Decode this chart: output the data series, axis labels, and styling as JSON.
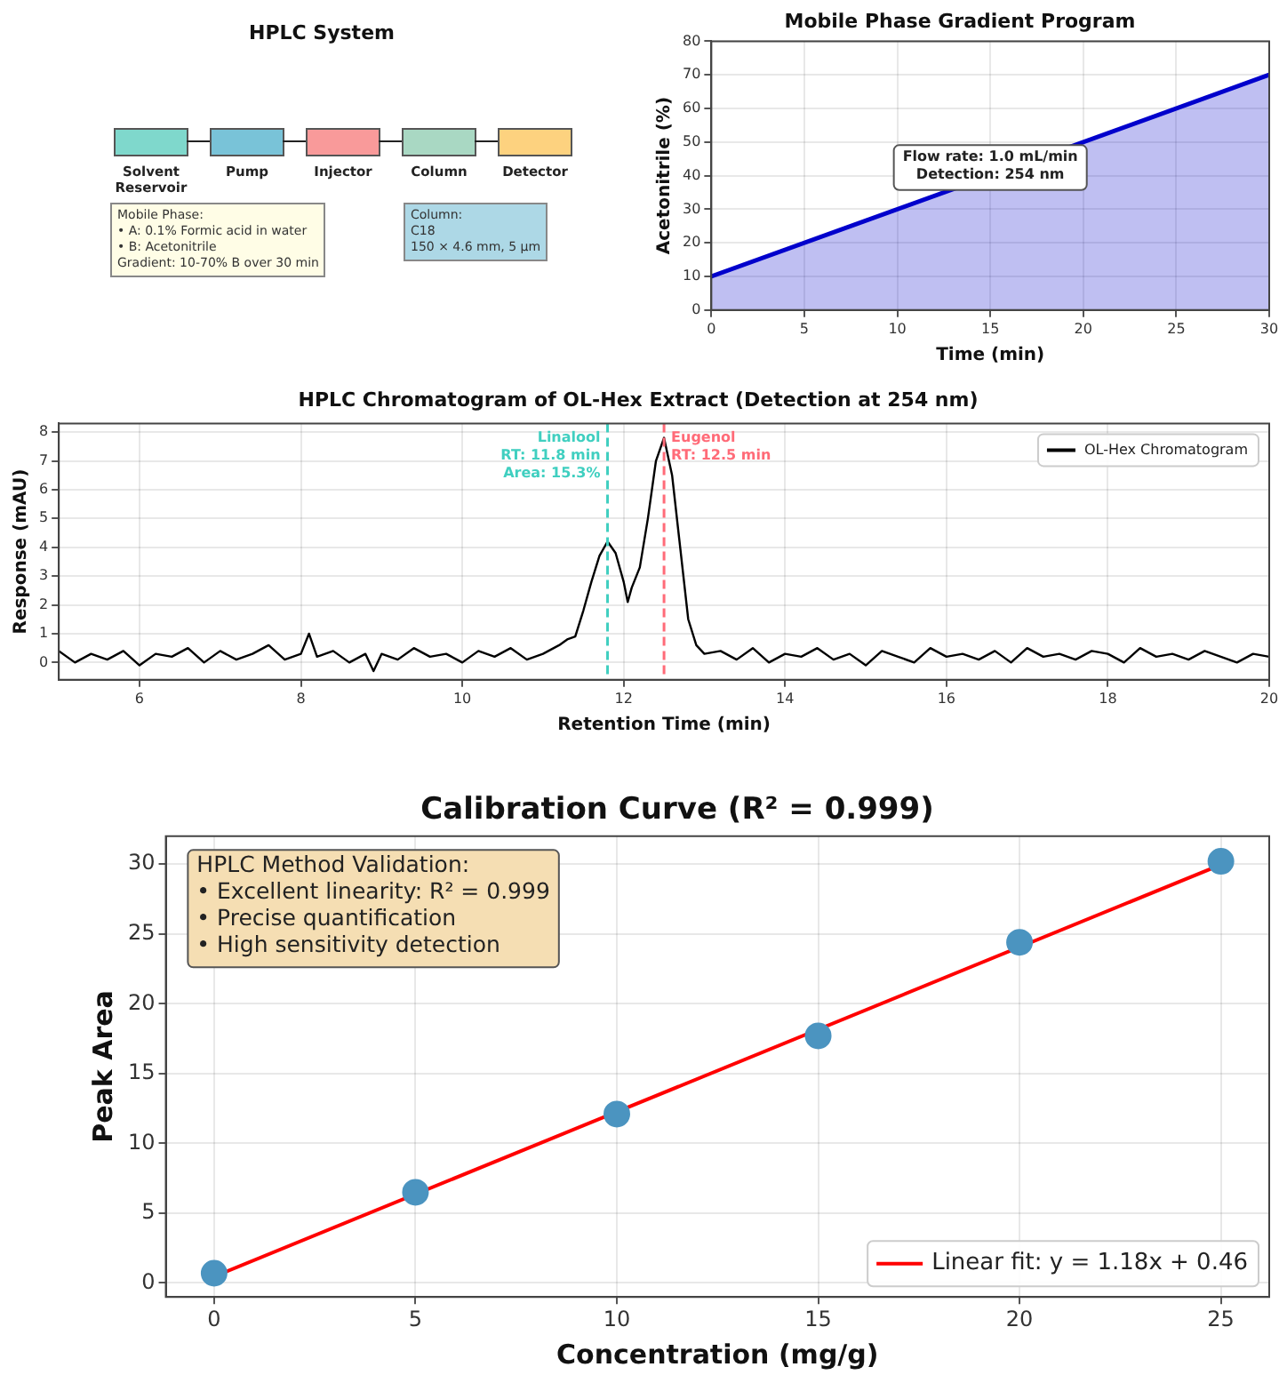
{
  "chart_data": [
    {
      "type": "other",
      "title": "HPLC System",
      "categories": [
        "Solvent Reservoir",
        "Pump",
        "Injector",
        "Column",
        "Detector"
      ],
      "colors": [
        "#7fd8cc",
        "#79c3d8",
        "#f99a9a",
        "#a9d8c3",
        "#fdd27f"
      ],
      "annotations": [
        "Mobile Phase:\n• A: 0.1% Formic acid in water\n• B: Acetonitrile\nGradient: 10-70% B over 30 min",
        "Column:\nC18\n150 × 4.6 mm, 5 µm"
      ]
    },
    {
      "type": "area",
      "title": "Mobile Phase Gradient Program",
      "xlabel": "Time (min)",
      "ylabel": "Acetonitrile (%)",
      "x": [
        0,
        30
      ],
      "series": [
        {
          "color": "#0000cc",
          "values": [
            10,
            70
          ]
        }
      ],
      "xlim": [
        0,
        30
      ],
      "xticks": [
        0,
        5,
        10,
        15,
        20,
        25,
        30
      ],
      "ylim": [
        0,
        80
      ],
      "yticks": [
        0,
        10,
        20,
        30,
        40,
        50,
        60,
        70,
        80
      ],
      "grid": true,
      "marker": "none",
      "annotations": [
        "Flow rate: 1.0 mL/min\nDetection: 254 nm"
      ]
    },
    {
      "type": "line",
      "title": "HPLC Chromatogram of OL-Hex Extract (Detection at 254 nm)",
      "xlabel": "Retention Time (min)",
      "ylabel": "Response (mAU)",
      "x": [
        5.0,
        5.2,
        5.4,
        5.6,
        5.8,
        6.0,
        6.2,
        6.4,
        6.6,
        6.8,
        7.0,
        7.2,
        7.4,
        7.6,
        7.8,
        8.0,
        8.1,
        8.2,
        8.4,
        8.6,
        8.8,
        8.9,
        9.0,
        9.2,
        9.4,
        9.6,
        9.8,
        10.0,
        10.2,
        10.4,
        10.6,
        10.8,
        11.0,
        11.2,
        11.3,
        11.4,
        11.5,
        11.6,
        11.7,
        11.8,
        11.9,
        12.0,
        12.05,
        12.1,
        12.2,
        12.3,
        12.4,
        12.5,
        12.6,
        12.7,
        12.8,
        12.9,
        13.0,
        13.2,
        13.4,
        13.6,
        13.8,
        14.0,
        14.2,
        14.4,
        14.6,
        14.8,
        15.0,
        15.2,
        15.4,
        15.6,
        15.8,
        16.0,
        16.2,
        16.4,
        16.6,
        16.8,
        17.0,
        17.2,
        17.4,
        17.6,
        17.8,
        18.0,
        18.2,
        18.4,
        18.6,
        18.8,
        19.0,
        19.2,
        19.4,
        19.6,
        19.8,
        20.0
      ],
      "series": [
        {
          "name": "OL-Hex Chromatogram",
          "color": "#000000",
          "values": [
            0.4,
            0.0,
            0.3,
            0.1,
            0.4,
            -0.1,
            0.3,
            0.2,
            0.5,
            0.0,
            0.4,
            0.1,
            0.3,
            0.6,
            0.1,
            0.3,
            1.0,
            0.2,
            0.4,
            0.0,
            0.3,
            -0.3,
            0.3,
            0.1,
            0.5,
            0.2,
            0.3,
            0.0,
            0.4,
            0.2,
            0.5,
            0.1,
            0.3,
            0.6,
            0.8,
            0.9,
            1.8,
            2.8,
            3.7,
            4.2,
            3.8,
            2.8,
            2.1,
            2.6,
            3.3,
            5.0,
            7.0,
            7.8,
            6.5,
            4.0,
            1.5,
            0.6,
            0.3,
            0.4,
            0.1,
            0.5,
            0.0,
            0.3,
            0.2,
            0.5,
            0.1,
            0.3,
            -0.1,
            0.4,
            0.2,
            0.0,
            0.5,
            0.2,
            0.3,
            0.1,
            0.4,
            0.0,
            0.5,
            0.2,
            0.3,
            0.1,
            0.4,
            0.3,
            0.0,
            0.5,
            0.2,
            0.3,
            0.1,
            0.4,
            0.2,
            0.0,
            0.3,
            0.2
          ]
        }
      ],
      "xlim": [
        5,
        20
      ],
      "xticks": [
        6,
        8,
        10,
        12,
        14,
        16,
        18,
        20
      ],
      "ylim": [
        -0.6,
        8.3
      ],
      "yticks": [
        0,
        1,
        2,
        3,
        4,
        5,
        6,
        7,
        8
      ],
      "grid": true,
      "legend": "top right",
      "marker": "none",
      "ref_lines": [
        {
          "axis": "x",
          "value": 11.8,
          "label": "Linalool\nRT: 11.8 min\nArea: 15.3%",
          "color": "#40cfc0",
          "line_style": "dashed"
        },
        {
          "axis": "x",
          "value": 12.5,
          "label": "Eugenol\nRT: 12.5 min",
          "color": "#ff6b78",
          "line_style": "dashed"
        }
      ]
    },
    {
      "type": "scatter",
      "title": "Calibration Curve (R² = 0.999)",
      "xlabel": "Concentration (mg/g)",
      "ylabel": "Peak Area",
      "series": [
        {
          "type": "scatter",
          "color": "#4b94c0",
          "x": [
            0,
            5,
            10,
            15,
            20,
            25
          ],
          "values": [
            0.7,
            6.5,
            12.1,
            17.7,
            24.4,
            30.2
          ],
          "marker": "circle"
        },
        {
          "type": "line",
          "name": "Linear fit: y = 1.18x + 0.46",
          "color": "#ff0000",
          "x": [
            0,
            25
          ],
          "values": [
            0.46,
            29.96
          ],
          "marker": "none"
        }
      ],
      "xlim": [
        -1.2,
        26.2
      ],
      "xticks": [
        0,
        5,
        10,
        15,
        20,
        25
      ],
      "ylim": [
        -1,
        32
      ],
      "yticks": [
        0,
        5,
        10,
        15,
        20,
        25,
        30
      ],
      "grid": true,
      "legend": "bottom right",
      "annotations": [
        "HPLC Method Validation:\n• Excellent linearity: R² = 0.999\n• Precise quantification\n• High sensitivity detection"
      ]
    }
  ]
}
